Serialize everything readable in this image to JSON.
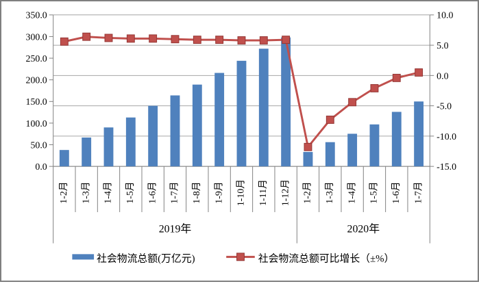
{
  "chart_data": {
    "type": "bar",
    "subtype": "bar-line-combo",
    "title": "",
    "categories": [
      "1-2月",
      "1-3月",
      "1-4月",
      "1-5月",
      "1-6月",
      "1-7月",
      "1-8月",
      "1-9月",
      "1-10月",
      "1-11月",
      "1-12月",
      "1-2月",
      "1-3月",
      "1-4月",
      "1-5月",
      "1-6月",
      "1-7月"
    ],
    "groups": [
      {
        "label": "2019年",
        "count": 11
      },
      {
        "label": "2020年",
        "count": 6
      }
    ],
    "series": [
      {
        "name": "社会物流总额(万亿元)",
        "type": "bar",
        "axis": "left",
        "color": "#4f81bd",
        "values": [
          37.9,
          66.7,
          90,
          113,
          140,
          164,
          189,
          216,
          244,
          272,
          298,
          33.3,
          56,
          75.4,
          97,
          126,
          150
        ]
      },
      {
        "name": "社会物流总额可比增长（±%）",
        "type": "line",
        "axis": "right",
        "color": "#c0504d",
        "marker": "square",
        "values": [
          5.6,
          6.4,
          6.2,
          6.1,
          6.1,
          6.0,
          5.9,
          5.9,
          5.8,
          5.8,
          5.9,
          -11.8,
          -7.3,
          -4.4,
          -2.1,
          -0.4,
          0.5
        ]
      }
    ],
    "left_axis": {
      "min": 0,
      "max": 350,
      "step": 50,
      "tick_labels": [
        "350.0",
        "300.0",
        "250.0",
        "200.0",
        "150.0",
        "100.0",
        "50.0",
        "0.0"
      ]
    },
    "right_axis": {
      "min": -15,
      "max": 10,
      "step": 5,
      "tick_labels": [
        "10.0",
        "5.0",
        "0.0",
        "-5.0",
        "-10.0",
        "-15.0"
      ]
    },
    "grid": true,
    "legend_position": "bottom",
    "colors": {
      "bar": "#4f81bd",
      "line": "#c0504d",
      "marker_stroke": "#943634",
      "gridline": "#a6a6a6",
      "axis": "#808080",
      "text": "#000000"
    }
  },
  "legend": {
    "bar_label": "社会物流总额(万亿元)",
    "line_label": "社会物流总额可比增长（±%）"
  }
}
